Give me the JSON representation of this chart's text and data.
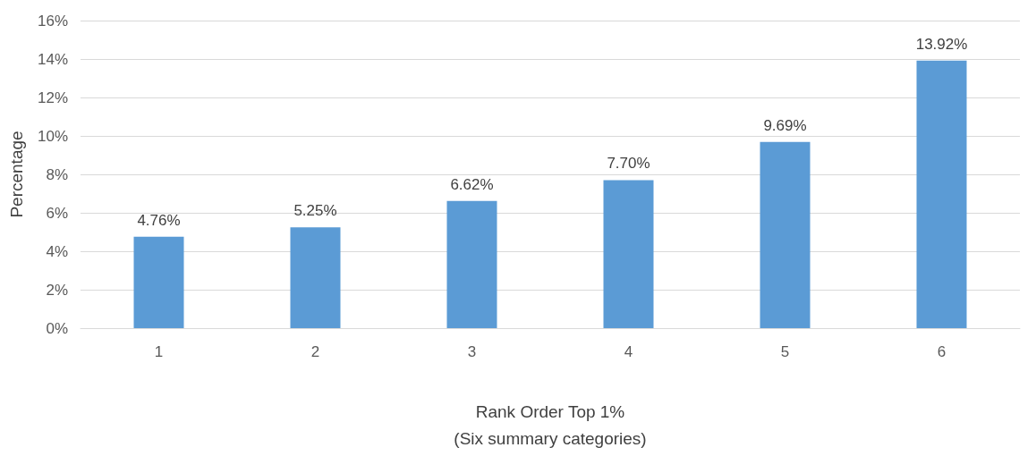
{
  "chart_data": {
    "type": "bar",
    "xlabel": "Rank Order Top 1%\n(Six summary categories)",
    "ylabel": "Percentage",
    "categories": [
      "1",
      "2",
      "3",
      "4",
      "5",
      "6"
    ],
    "values": [
      4.76,
      5.25,
      6.62,
      7.7,
      9.69,
      13.92
    ],
    "value_labels": [
      "4.76%",
      "5.25%",
      "6.62%",
      "7.70%",
      "9.69%",
      "13.92%"
    ],
    "color": "#5b9bd5",
    "ylim": [
      0,
      16
    ],
    "yticks": [
      {
        "value": 0,
        "label": "0%"
      },
      {
        "value": 2,
        "label": "2%"
      },
      {
        "value": 4,
        "label": "4%"
      },
      {
        "value": 6,
        "label": "6%"
      },
      {
        "value": 8,
        "label": "8%"
      },
      {
        "value": 10,
        "label": "10%"
      },
      {
        "value": 12,
        "label": "12%"
      },
      {
        "value": 14,
        "label": "14%"
      },
      {
        "value": 16,
        "label": "16%"
      }
    ],
    "grid": "y"
  }
}
